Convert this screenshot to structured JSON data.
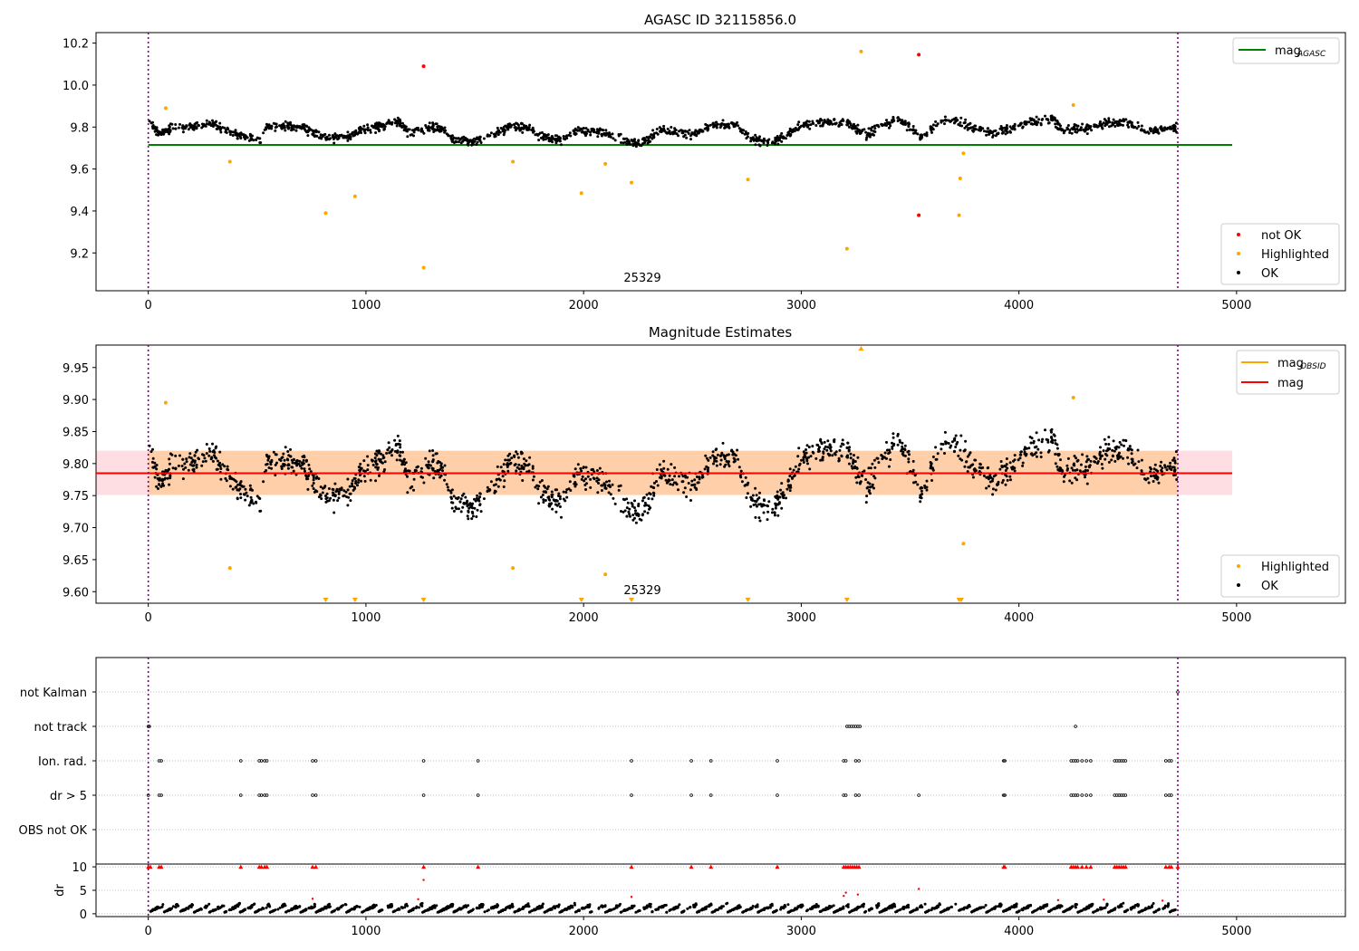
{
  "chart_data": [
    {
      "type": "scatter",
      "title": "AGASC ID 32115856.0",
      "xlim": [
        -240,
        5500
      ],
      "ylim": [
        9.02,
        10.25
      ],
      "xticks": [
        0,
        1000,
        2000,
        3000,
        4000,
        5000
      ],
      "yticks": [
        9.2,
        9.4,
        9.6,
        9.8,
        10.0,
        10.2
      ],
      "obsid_label": "25329",
      "obsid_label_x": 2270,
      "obs_bounds": [
        0,
        4730
      ],
      "mag_agasc": 9.715,
      "mag_agasc_range": [
        0,
        4980
      ],
      "legend_lines": [
        {
          "label": "mag",
          "sub": "AGASC",
          "color": "#008000"
        }
      ],
      "legend_points": [
        {
          "label": "not OK",
          "color": "#ff0000"
        },
        {
          "label": "Highlighted",
          "color": "#ffa500"
        },
        {
          "label": "OK",
          "color": "#000000"
        }
      ],
      "ok_profile_x": [
        0,
        30,
        60,
        120,
        200,
        300,
        360,
        420,
        470,
        520,
        540,
        600,
        700,
        780,
        850,
        920,
        1000,
        1100,
        1150,
        1200,
        1300,
        1350,
        1400,
        1500,
        1550,
        1650,
        1750,
        1800,
        1900,
        1980,
        2050,
        2150,
        2200,
        2260,
        2300,
        2350,
        2450,
        2520,
        2600,
        2700,
        2760,
        2800,
        2900,
        3000,
        3100,
        3200,
        3300,
        3350,
        3450,
        3550,
        3650,
        3700,
        3800,
        3900,
        4000,
        4100,
        4150,
        4200,
        4300,
        4400,
        4500,
        4600,
        4700,
        4730
      ],
      "ok_profile_y": [
        9.84,
        9.79,
        9.77,
        9.8,
        9.8,
        9.82,
        9.78,
        9.76,
        9.75,
        9.74,
        9.8,
        9.8,
        9.8,
        9.76,
        9.75,
        9.76,
        9.79,
        9.81,
        9.83,
        9.77,
        9.8,
        9.79,
        9.74,
        9.73,
        9.75,
        9.8,
        9.8,
        9.75,
        9.74,
        9.78,
        9.78,
        9.76,
        9.73,
        9.73,
        9.74,
        9.79,
        9.77,
        9.77,
        9.81,
        9.81,
        9.75,
        9.73,
        9.74,
        9.81,
        9.82,
        9.83,
        9.76,
        9.8,
        9.84,
        9.75,
        9.83,
        9.83,
        9.79,
        9.77,
        9.81,
        9.83,
        9.84,
        9.79,
        9.79,
        9.82,
        9.82,
        9.78,
        9.8,
        9.79
      ],
      "ok_spread": 0.022,
      "highlighted_points": [
        {
          "x": 80,
          "y": 9.89
        },
        {
          "x": 375,
          "y": 9.635
        },
        {
          "x": 815,
          "y": 9.39
        },
        {
          "x": 950,
          "y": 9.47
        },
        {
          "x": 1265,
          "y": 9.13
        },
        {
          "x": 1675,
          "y": 9.635
        },
        {
          "x": 1990,
          "y": 9.485
        },
        {
          "x": 2100,
          "y": 9.625
        },
        {
          "x": 2220,
          "y": 9.535
        },
        {
          "x": 2755,
          "y": 9.55
        },
        {
          "x": 3210,
          "y": 9.22
        },
        {
          "x": 3275,
          "y": 10.16
        },
        {
          "x": 3725,
          "y": 9.38
        },
        {
          "x": 3730,
          "y": 9.555
        },
        {
          "x": 3745,
          "y": 9.675
        },
        {
          "x": 4250,
          "y": 9.905
        }
      ],
      "not_ok_points": [
        {
          "x": 1265,
          "y": 10.09
        },
        {
          "x": 3540,
          "y": 10.145
        },
        {
          "x": 3540,
          "y": 9.38
        }
      ]
    },
    {
      "type": "scatter",
      "title": "Magnitude Estimates",
      "xlim": [
        -240,
        5500
      ],
      "ylim": [
        9.582,
        9.985
      ],
      "xticks": [
        0,
        1000,
        2000,
        3000,
        4000,
        5000
      ],
      "yticks": [
        9.6,
        9.65,
        9.7,
        9.75,
        9.8,
        9.85,
        9.9,
        9.95
      ],
      "ytick_labels": [
        "9.60",
        "9.65",
        "9.70",
        "9.75",
        "9.80",
        "9.85",
        "9.90",
        "9.95"
      ],
      "obsid_label": "25329",
      "obsid_label_x": 2270,
      "obs_bounds": [
        0,
        4730
      ],
      "mag_obsid": 9.785,
      "mag": 9.785,
      "mag_band": [
        9.751,
        9.82
      ],
      "line_range": [
        -240,
        4980
      ],
      "legend_lines": [
        {
          "label": "mag",
          "sub": "OBSID",
          "color": "#ffa500"
        },
        {
          "label": "mag",
          "sub": "",
          "color": "#ff0000"
        }
      ],
      "legend_points": [
        {
          "label": "Highlighted",
          "color": "#ffa500"
        },
        {
          "label": "OK",
          "color": "#000000"
        }
      ],
      "ok_profile_x": [
        0,
        30,
        60,
        120,
        200,
        300,
        360,
        420,
        470,
        520,
        540,
        600,
        700,
        780,
        850,
        920,
        1000,
        1100,
        1150,
        1200,
        1300,
        1350,
        1400,
        1500,
        1550,
        1650,
        1750,
        1800,
        1900,
        1980,
        2050,
        2150,
        2200,
        2260,
        2300,
        2350,
        2450,
        2520,
        2600,
        2700,
        2760,
        2800,
        2900,
        3000,
        3100,
        3200,
        3300,
        3350,
        3450,
        3550,
        3650,
        3700,
        3800,
        3900,
        4000,
        4100,
        4150,
        4200,
        4300,
        4400,
        4500,
        4600,
        4700,
        4730
      ],
      "ok_profile_y": [
        9.84,
        9.79,
        9.77,
        9.8,
        9.8,
        9.82,
        9.78,
        9.76,
        9.75,
        9.74,
        9.8,
        9.8,
        9.8,
        9.76,
        9.75,
        9.76,
        9.79,
        9.81,
        9.83,
        9.77,
        9.8,
        9.79,
        9.74,
        9.73,
        9.75,
        9.8,
        9.8,
        9.75,
        9.74,
        9.78,
        9.78,
        9.76,
        9.73,
        9.73,
        9.74,
        9.79,
        9.77,
        9.77,
        9.81,
        9.81,
        9.75,
        9.73,
        9.74,
        9.81,
        9.82,
        9.83,
        9.76,
        9.8,
        9.84,
        9.75,
        9.83,
        9.83,
        9.79,
        9.77,
        9.81,
        9.83,
        9.84,
        9.79,
        9.79,
        9.82,
        9.82,
        9.78,
        9.8,
        9.79
      ],
      "ok_spread": 0.022,
      "highlighted_points": [
        {
          "x": 80,
          "y": 9.895
        },
        {
          "x": 375,
          "y": 9.637
        },
        {
          "x": 1675,
          "y": 9.637
        },
        {
          "x": 2100,
          "y": 9.627
        },
        {
          "x": 3745,
          "y": 9.675
        },
        {
          "x": 4250,
          "y": 9.903
        }
      ],
      "clipped_low_x": [
        815,
        950,
        1265,
        1990,
        2220,
        2755,
        3210,
        3725,
        3735
      ],
      "clipped_high_x": [
        3275
      ]
    },
    {
      "type": "scatter",
      "title": "",
      "xlim": [
        -240,
        5500
      ],
      "categories": [
        "not Kalman",
        "not track",
        "Ion. rad.",
        "dr > 5",
        "OBS not OK"
      ],
      "obs_bounds": [
        0,
        4730
      ],
      "flag_events": {
        "not Kalman": [
          4730
        ],
        "not track": [
          0,
          5,
          3210,
          3220,
          3230,
          3240,
          3250,
          3260,
          3270,
          4260
        ],
        "Ion. rad.": [
          50,
          60,
          425,
          510,
          520,
          535,
          545,
          755,
          770,
          1265,
          1515,
          2220,
          2495,
          2585,
          2890,
          3195,
          3205,
          3250,
          3265,
          3930,
          3935,
          4240,
          4250,
          4260,
          4270,
          4290,
          4310,
          4330,
          4440,
          4450,
          4460,
          4470,
          4480,
          4490,
          4675,
          4690,
          4700
        ],
        "dr > 5": [
          0,
          50,
          60,
          425,
          510,
          520,
          535,
          545,
          755,
          770,
          1265,
          1515,
          2220,
          2495,
          2585,
          2890,
          3195,
          3205,
          3250,
          3265,
          3540,
          3930,
          3935,
          4240,
          4250,
          4260,
          4270,
          4290,
          4310,
          4330,
          4440,
          4450,
          4460,
          4470,
          4480,
          4490,
          4675,
          4690,
          4700
        ],
        "OBS not OK": []
      }
    },
    {
      "type": "scatter",
      "title": "",
      "ylabel": "dr",
      "xlim": [
        -240,
        5500
      ],
      "ylim": [
        -0.6,
        10.6
      ],
      "yticks": [
        0,
        5,
        10
      ],
      "xticks": [
        0,
        1000,
        2000,
        3000,
        4000,
        5000
      ],
      "obs_bounds": [
        0,
        4730
      ],
      "capped_value": 10,
      "capped_x": [
        0,
        10,
        50,
        60,
        425,
        510,
        520,
        535,
        545,
        755,
        770,
        1265,
        1515,
        2220,
        2495,
        2585,
        2890,
        3195,
        3205,
        3215,
        3225,
        3235,
        3245,
        3255,
        3265,
        3930,
        3935,
        4240,
        4250,
        4260,
        4270,
        4290,
        4310,
        4330,
        4440,
        4450,
        4460,
        4470,
        4480,
        4490,
        4675,
        4690,
        4700,
        4730
      ],
      "red_points": [
        {
          "x": 1265,
          "y": 7.2
        },
        {
          "x": 1240,
          "y": 3.1
        },
        {
          "x": 755,
          "y": 3.2
        },
        {
          "x": 2220,
          "y": 3.6
        },
        {
          "x": 3195,
          "y": 3.8
        },
        {
          "x": 3205,
          "y": 4.5
        },
        {
          "x": 3260,
          "y": 4.1
        },
        {
          "x": 3540,
          "y": 5.3
        },
        {
          "x": 4180,
          "y": 2.9
        },
        {
          "x": 4390,
          "y": 3.0
        },
        {
          "x": 4660,
          "y": 2.8
        }
      ],
      "ok_range": [
        0.3,
        2.3
      ]
    }
  ]
}
